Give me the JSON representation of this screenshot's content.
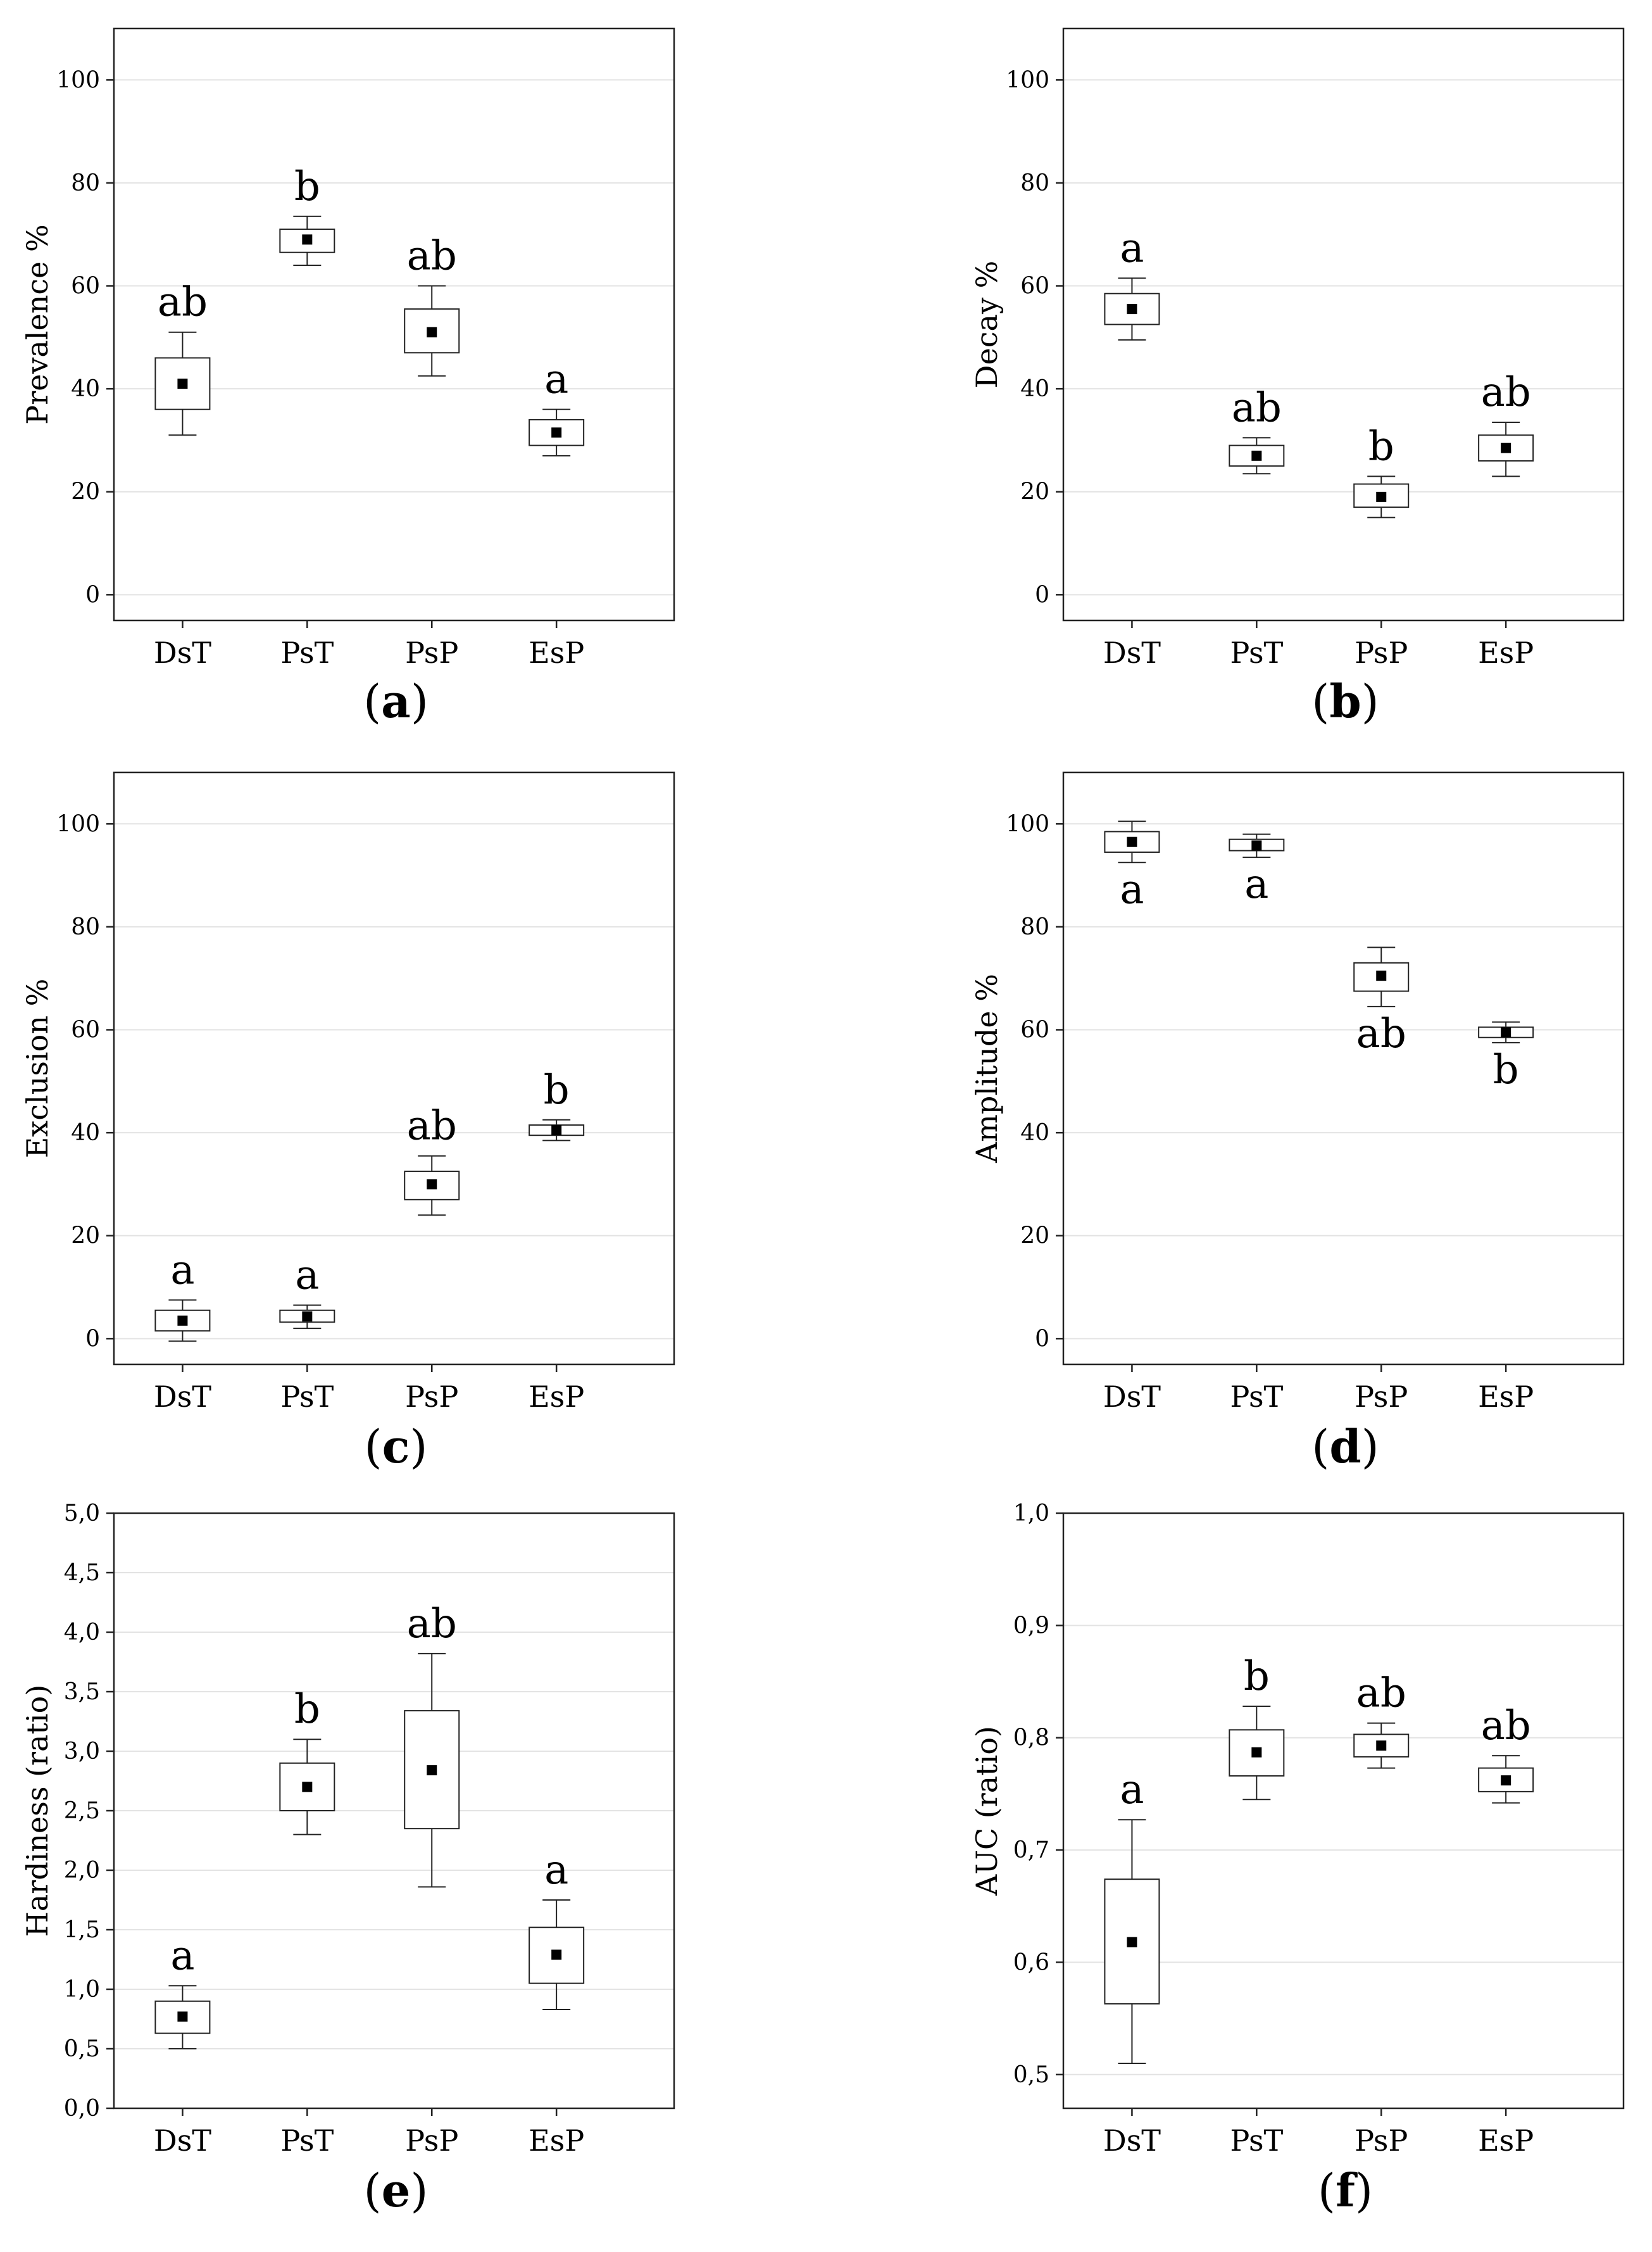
{
  "figure": {
    "panels": [
      {
        "id": "a",
        "caption_letter": "a"
      },
      {
        "id": "b",
        "caption_letter": "b"
      },
      {
        "id": "c",
        "caption_letter": "c"
      },
      {
        "id": "d",
        "caption_letter": "d"
      },
      {
        "id": "e",
        "caption_letter": "e"
      },
      {
        "id": "f",
        "caption_letter": "f"
      }
    ]
  },
  "chart_data": [
    {
      "type": "box",
      "panel": "(a)",
      "ylabel": "Prevalence %",
      "xlabel": "",
      "categories": [
        "DsT",
        "PsT",
        "PsP",
        "EsP"
      ],
      "ylim": [
        -5,
        110
      ],
      "yticks": [
        0,
        20,
        40,
        60,
        80,
        100
      ],
      "ytick_labels": [
        "0",
        "20",
        "40",
        "60",
        "80",
        "100"
      ],
      "grid": true,
      "boxes": [
        {
          "category": "DsT",
          "whisker_low": 31,
          "q1": 36,
          "mean": 41,
          "q3": 46,
          "whisker_high": 51,
          "letter": "ab"
        },
        {
          "category": "PsT",
          "whisker_low": 64,
          "q1": 66.5,
          "mean": 69,
          "q3": 71,
          "whisker_high": 73.5,
          "letter": "b"
        },
        {
          "category": "PsP",
          "whisker_low": 42.5,
          "q1": 47,
          "mean": 51,
          "q3": 55.5,
          "whisker_high": 60,
          "letter": "ab"
        },
        {
          "category": "EsP",
          "whisker_low": 27,
          "q1": 29,
          "mean": 31.5,
          "q3": 34,
          "whisker_high": 36,
          "letter": "a"
        }
      ]
    },
    {
      "type": "box",
      "panel": "(b)",
      "ylabel": "Decay %",
      "xlabel": "",
      "categories": [
        "DsT",
        "PsT",
        "PsP",
        "EsP"
      ],
      "ylim": [
        -5,
        110
      ],
      "yticks": [
        0,
        20,
        40,
        60,
        80,
        100
      ],
      "ytick_labels": [
        "0",
        "20",
        "40",
        "60",
        "80",
        "100"
      ],
      "grid": true,
      "boxes": [
        {
          "category": "DsT",
          "whisker_low": 49.5,
          "q1": 52.5,
          "mean": 55.5,
          "q3": 58.5,
          "whisker_high": 61.5,
          "letter": "a"
        },
        {
          "category": "PsT",
          "whisker_low": 23.5,
          "q1": 25,
          "mean": 27,
          "q3": 29,
          "whisker_high": 30.5,
          "letter": "ab"
        },
        {
          "category": "PsP",
          "whisker_low": 15,
          "q1": 17,
          "mean": 19,
          "q3": 21.5,
          "whisker_high": 23,
          "letter": "b"
        },
        {
          "category": "EsP",
          "whisker_low": 23,
          "q1": 26,
          "mean": 28.5,
          "q3": 31,
          "whisker_high": 33.5,
          "letter": "ab"
        }
      ]
    },
    {
      "type": "box",
      "panel": "(c)",
      "ylabel": "Exclusion %",
      "xlabel": "",
      "categories": [
        "DsT",
        "PsT",
        "PsP",
        "EsP"
      ],
      "ylim": [
        -5,
        110
      ],
      "yticks": [
        0,
        20,
        40,
        60,
        80,
        100
      ],
      "ytick_labels": [
        "0",
        "20",
        "40",
        "60",
        "80",
        "100"
      ],
      "grid": true,
      "boxes": [
        {
          "category": "DsT",
          "whisker_low": -0.5,
          "q1": 1.5,
          "mean": 3.5,
          "q3": 5.5,
          "whisker_high": 7.5,
          "letter": "a"
        },
        {
          "category": "PsT",
          "whisker_low": 2,
          "q1": 3.2,
          "mean": 4.3,
          "q3": 5.5,
          "whisker_high": 6.5,
          "letter": "a"
        },
        {
          "category": "PsP",
          "whisker_low": 24,
          "q1": 27,
          "mean": 30,
          "q3": 32.5,
          "whisker_high": 35.5,
          "letter": "ab"
        },
        {
          "category": "EsP",
          "whisker_low": 38.5,
          "q1": 39.5,
          "mean": 40.5,
          "q3": 41.5,
          "whisker_high": 42.5,
          "letter": "b"
        }
      ]
    },
    {
      "type": "box",
      "panel": "(d)",
      "ylabel": "Amplitude %",
      "xlabel": "",
      "categories": [
        "DsT",
        "PsT",
        "PsP",
        "EsP"
      ],
      "ylim": [
        -5,
        110
      ],
      "yticks": [
        0,
        20,
        40,
        60,
        80,
        100
      ],
      "ytick_labels": [
        "0",
        "20",
        "40",
        "60",
        "80",
        "100"
      ],
      "grid": true,
      "boxes": [
        {
          "category": "DsT",
          "whisker_low": 92.5,
          "q1": 94.5,
          "mean": 96.5,
          "q3": 98.5,
          "whisker_high": 100.5,
          "letter": "a",
          "letter_pos": "below"
        },
        {
          "category": "PsT",
          "whisker_low": 93.5,
          "q1": 94.8,
          "mean": 95.8,
          "q3": 97,
          "whisker_high": 98,
          "letter": "a",
          "letter_pos": "below"
        },
        {
          "category": "PsP",
          "whisker_low": 64.5,
          "q1": 67.5,
          "mean": 70.5,
          "q3": 73,
          "whisker_high": 76,
          "letter": "ab",
          "letter_pos": "below"
        },
        {
          "category": "EsP",
          "whisker_low": 57.5,
          "q1": 58.5,
          "mean": 59.5,
          "q3": 60.5,
          "whisker_high": 61.5,
          "letter": "b",
          "letter_pos": "below"
        }
      ]
    },
    {
      "type": "box",
      "panel": "(e)",
      "ylabel": "Hardiness (ratio)",
      "xlabel": "",
      "categories": [
        "DsT",
        "PsT",
        "PsP",
        "EsP"
      ],
      "ylim": [
        0,
        5
      ],
      "yticks": [
        0,
        0.5,
        1,
        1.5,
        2,
        2.5,
        3,
        3.5,
        4,
        4.5,
        5
      ],
      "ytick_labels": [
        "0,0",
        "0,5",
        "1,0",
        "1,5",
        "2,0",
        "2,5",
        "3,0",
        "3,5",
        "4,0",
        "4,5",
        "5,0"
      ],
      "grid": true,
      "boxes": [
        {
          "category": "DsT",
          "whisker_low": 0.5,
          "q1": 0.63,
          "mean": 0.77,
          "q3": 0.9,
          "whisker_high": 1.03,
          "letter": "a"
        },
        {
          "category": "PsT",
          "whisker_low": 2.3,
          "q1": 2.5,
          "mean": 2.7,
          "q3": 2.9,
          "whisker_high": 3.1,
          "letter": "b"
        },
        {
          "category": "PsP",
          "whisker_low": 1.86,
          "q1": 2.35,
          "mean": 2.84,
          "q3": 3.34,
          "whisker_high": 3.82,
          "letter": "ab"
        },
        {
          "category": "EsP",
          "whisker_low": 0.83,
          "q1": 1.05,
          "mean": 1.29,
          "q3": 1.52,
          "whisker_high": 1.75,
          "letter": "a"
        }
      ]
    },
    {
      "type": "box",
      "panel": "(f)",
      "ylabel": "AUC (ratio)",
      "xlabel": "",
      "categories": [
        "DsT",
        "PsT",
        "PsP",
        "EsP"
      ],
      "ylim": [
        0.47,
        1.0
      ],
      "yticks": [
        0.5,
        0.6,
        0.7,
        0.8,
        0.9,
        1.0
      ],
      "ytick_labels": [
        "0,5",
        "0,6",
        "0,7",
        "0,8",
        "0,9",
        "1,0"
      ],
      "grid": true,
      "boxes": [
        {
          "category": "DsT",
          "whisker_low": 0.51,
          "q1": 0.563,
          "mean": 0.618,
          "q3": 0.674,
          "whisker_high": 0.727,
          "letter": "a"
        },
        {
          "category": "PsT",
          "whisker_low": 0.745,
          "q1": 0.766,
          "mean": 0.787,
          "q3": 0.807,
          "whisker_high": 0.828,
          "letter": "b"
        },
        {
          "category": "PsP",
          "whisker_low": 0.773,
          "q1": 0.783,
          "mean": 0.793,
          "q3": 0.803,
          "whisker_high": 0.813,
          "letter": "ab"
        },
        {
          "category": "EsP",
          "whisker_low": 0.742,
          "q1": 0.752,
          "mean": 0.762,
          "q3": 0.773,
          "whisker_high": 0.784,
          "letter": "ab"
        }
      ]
    }
  ]
}
